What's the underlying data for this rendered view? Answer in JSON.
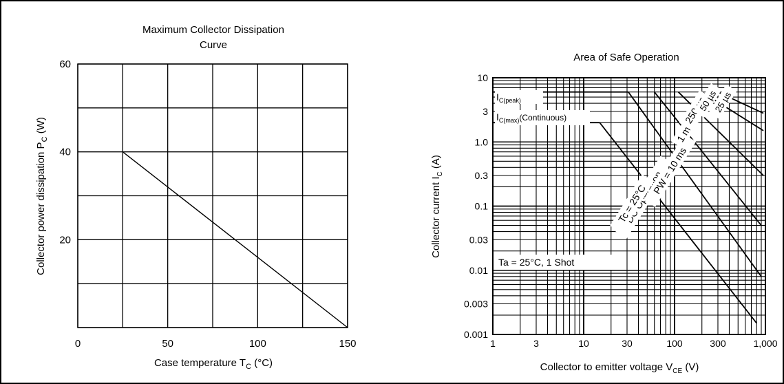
{
  "chart_data": [
    {
      "type": "line",
      "title_lines": [
        "Maximum Collector Dissipation",
        "Curve"
      ],
      "xlabel": "Case temperature T",
      "xlabel_sub": "C",
      "xlabel_unit": " (°C)",
      "ylabel": "Collector power dissipation  P",
      "ylabel_sub": "C",
      "ylabel_unit": " (W)",
      "xlim": [
        0,
        150
      ],
      "ylim": [
        0,
        60
      ],
      "x_ticks": [
        0,
        50,
        100,
        150
      ],
      "y_ticks": [
        20,
        40,
        60
      ],
      "grid": true,
      "series": [
        {
          "x": [
            25,
            150
          ],
          "y": [
            40,
            0
          ]
        }
      ]
    },
    {
      "type": "line",
      "title": "Area of Safe Operation",
      "xlabel": "Collector to emitter voltage  V",
      "xlabel_sub": "CE",
      "xlabel_unit": "  (V)",
      "ylabel": "Collector current  I",
      "ylabel_sub": "C",
      "ylabel_unit": "  (A)",
      "x_scale": "log",
      "y_scale": "log",
      "xlim": [
        1,
        1000
      ],
      "ylim": [
        0.001,
        10
      ],
      "x_tick_values": [
        1,
        3,
        10,
        30,
        100,
        300,
        1000
      ],
      "x_tick_labels": [
        "1",
        "3",
        "10",
        "30",
        "100",
        "300",
        "1,000"
      ],
      "y_tick_values": [
        10,
        3,
        1,
        0.3,
        0.1,
        0.03,
        0.01,
        0.003,
        0.001
      ],
      "y_tick_labels": [
        "10",
        "3",
        "1.0",
        "0.3",
        "0.1",
        "0.03",
        "0.01",
        "0.003",
        "0.001"
      ],
      "grid": true,
      "annotations": {
        "ic_peak_main": "I",
        "ic_peak_sub": "C(peak)",
        "ic_cont_main": "I",
        "ic_cont_sub": "C(max)",
        "ic_cont_suffix": "(Continuous)",
        "ta_shot": "Ta = 25°C, 1 Shot",
        "dc_operation": "DC Operation",
        "tc_25": "Tc = 25°C",
        "pw_10ms": "PW = 10 ms",
        "pw_1ms": "1 ms",
        "pw_250us": "250 µs",
        "pw_50us": "50 µs",
        "pw_25us": "25 µs"
      },
      "series": [
        {
          "name": "I_C(peak)",
          "x": [
            1,
            31
          ],
          "y": [
            6.0,
            6.0
          ]
        },
        {
          "name": "I_C(max) (Continuous)",
          "x": [
            1,
            15
          ],
          "y": [
            2.0,
            2.0
          ]
        },
        {
          "name": "DC Operation, Tc = 25°C",
          "x": [
            15,
            800
          ],
          "y": [
            2.0,
            0.0015
          ]
        },
        {
          "name": "PW = 10 ms",
          "x": [
            31,
            900
          ],
          "y": [
            6.0,
            0.008
          ]
        },
        {
          "name": "1 ms",
          "x": [
            60,
            900
          ],
          "y": [
            6.0,
            0.05
          ]
        },
        {
          "name": "250 µs",
          "x": [
            110,
            950
          ],
          "y": [
            6.0,
            0.3
          ]
        },
        {
          "name": "50 µs",
          "x": [
            200,
            950
          ],
          "y": [
            6.0,
            1.5
          ]
        },
        {
          "name": "25 µs",
          "x": [
            300,
            950
          ],
          "y": [
            6.0,
            2.8
          ]
        }
      ]
    }
  ]
}
